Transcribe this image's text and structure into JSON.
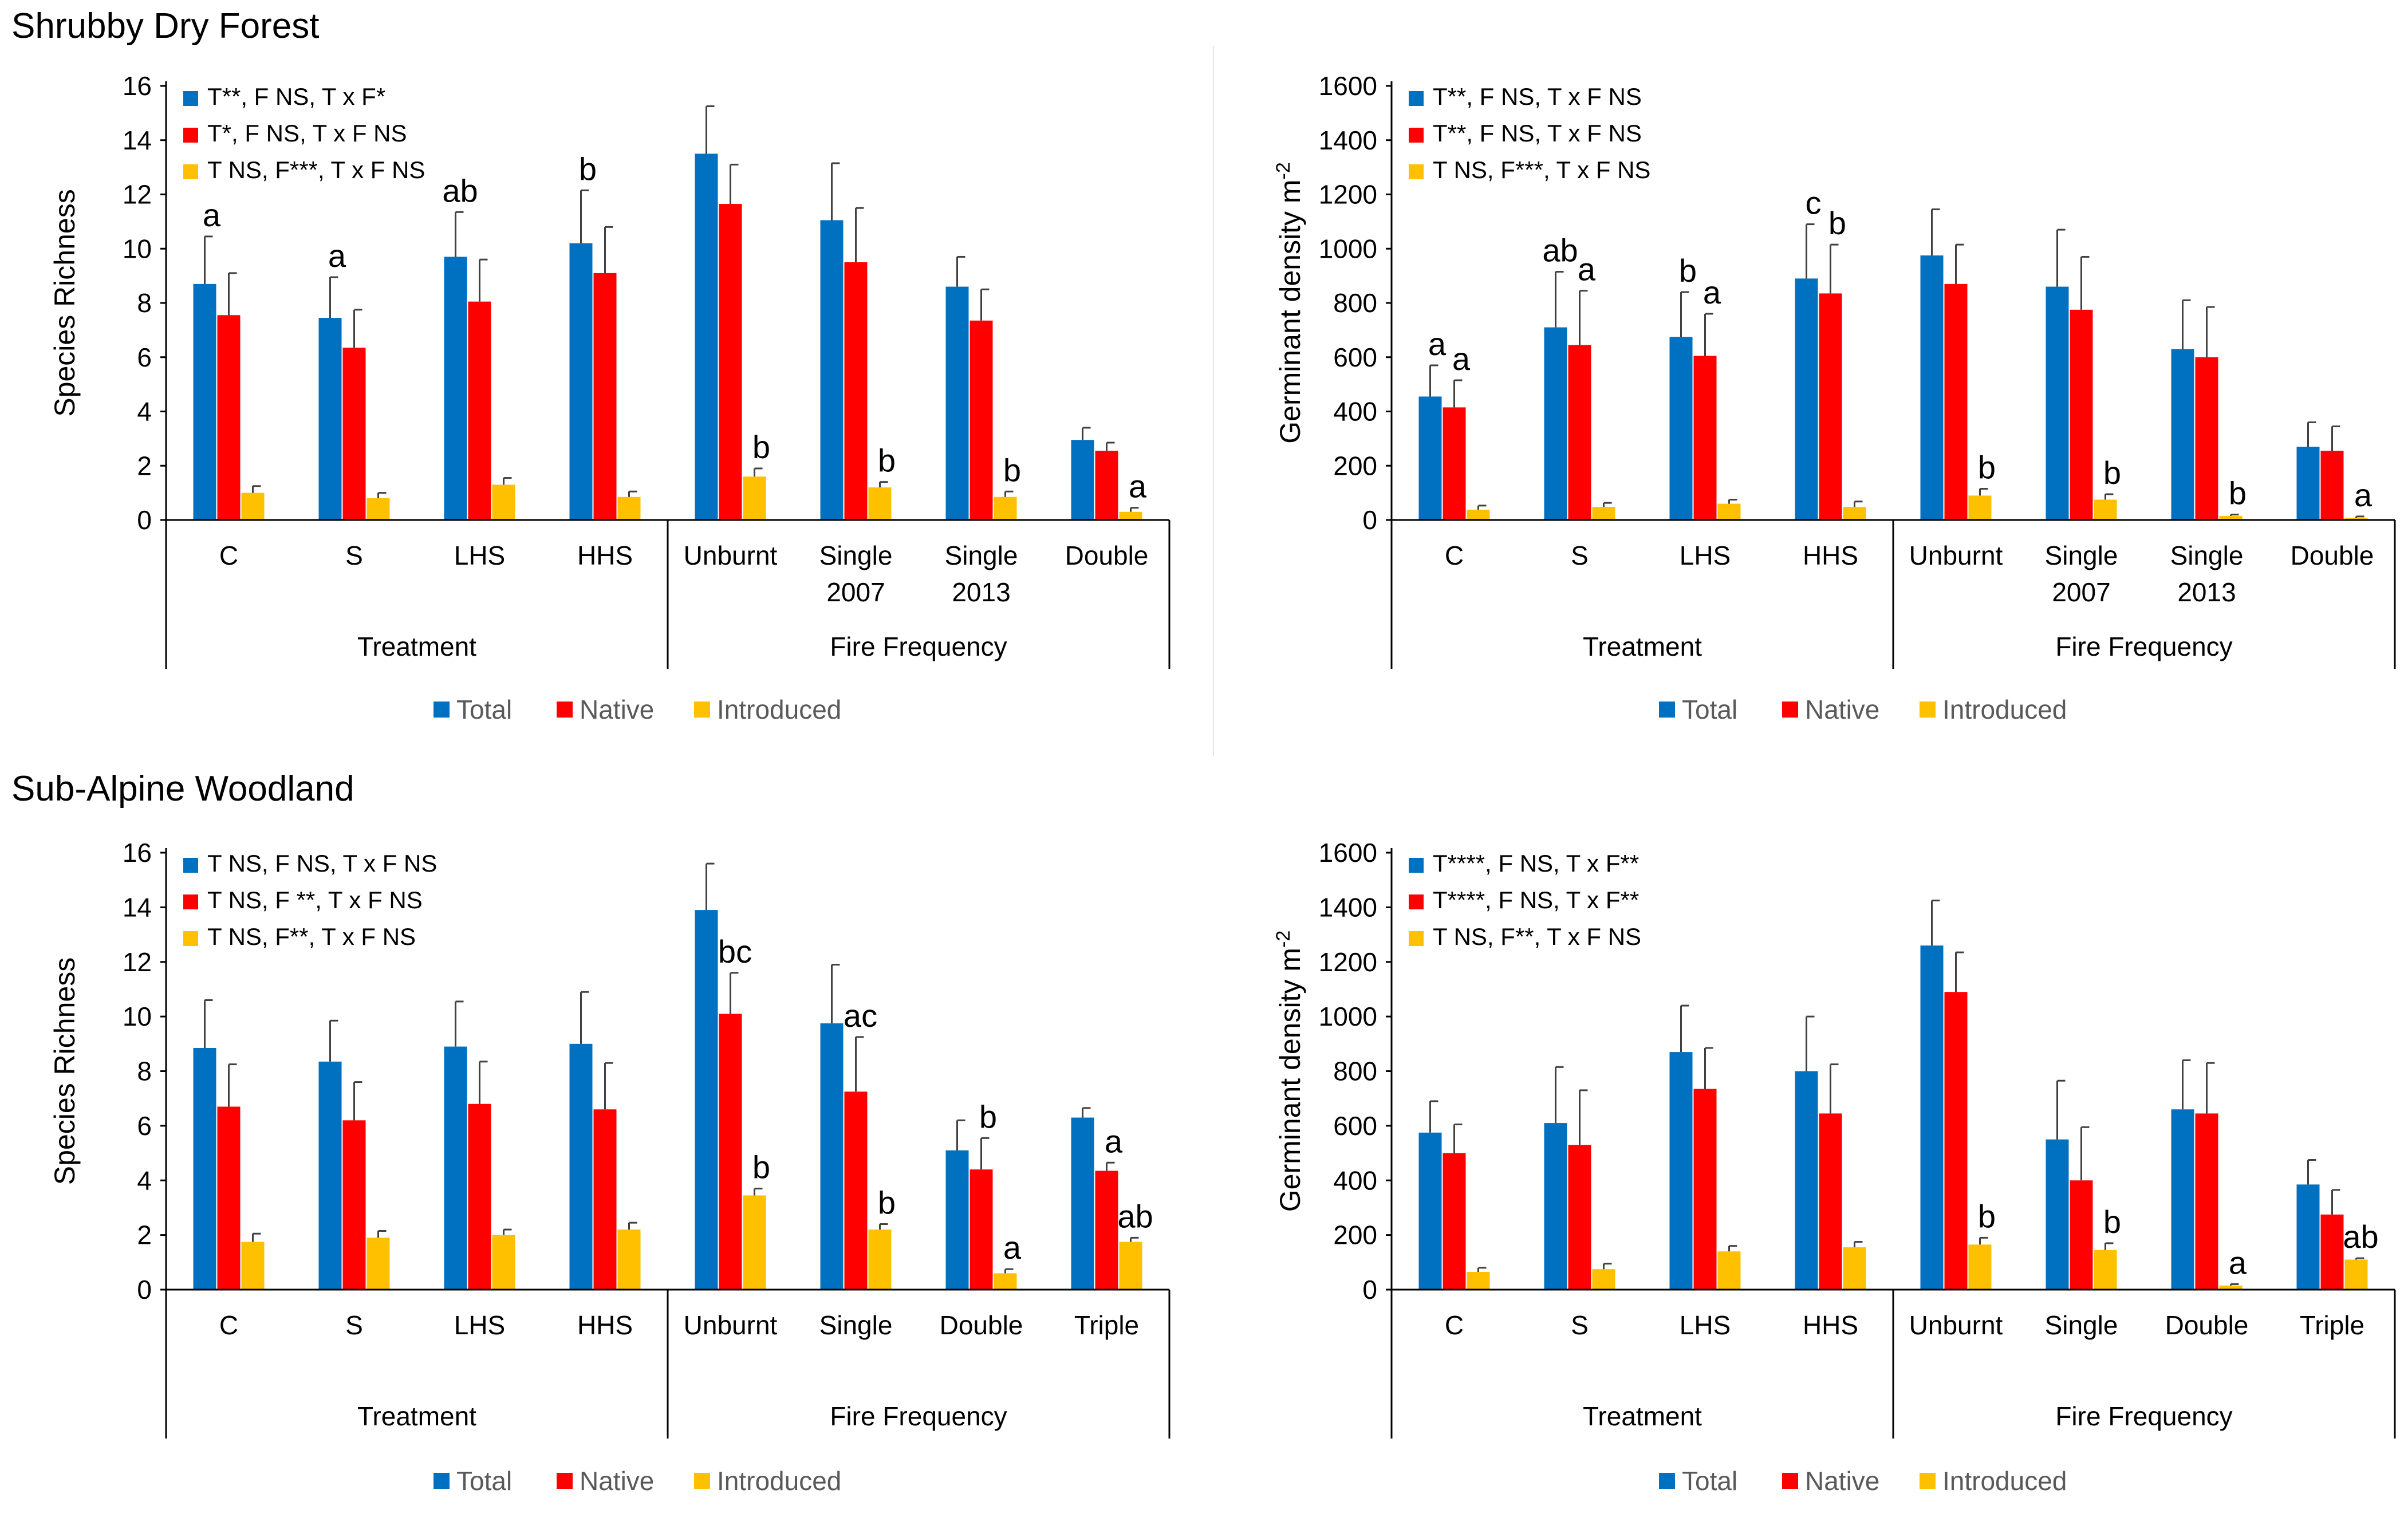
{
  "sections": {
    "top": "Shrubby Dry Forest",
    "bottom": "Sub-Alpine Woodland"
  },
  "colors": {
    "total": "#0070C0",
    "native": "#FF0000",
    "introduced": "#FFC000",
    "axis": "#000000",
    "error": "#404040"
  },
  "legend_labels": [
    "Total",
    "Native",
    "Introduced"
  ],
  "chart_data": [
    {
      "id": "sdf-richness",
      "type": "bar",
      "ylabel": "Species Richness",
      "ylim": [
        0,
        16
      ],
      "yticks": [
        0,
        2,
        4,
        6,
        8,
        10,
        12,
        14,
        16
      ],
      "categories": [
        "C",
        "S",
        "LHS",
        "HHS",
        "Unburnt",
        "Single\n2007",
        "Single\n2013",
        "Double"
      ],
      "groups": [
        {
          "label": "Treatment",
          "count": 4
        },
        {
          "label": "Fire Frequency",
          "count": 4
        }
      ],
      "stats": [
        "T**, F NS, T x F*",
        "T*, F NS, T x F NS",
        "T NS, F***, T x F NS"
      ],
      "series": [
        {
          "name": "Total",
          "values": [
            8.7,
            7.45,
            9.7,
            10.2,
            13.5,
            11.05,
            8.6,
            2.95
          ],
          "errors": [
            1.75,
            1.5,
            1.65,
            1.95,
            1.75,
            2.1,
            1.1,
            0.45
          ]
        },
        {
          "name": "Native",
          "values": [
            7.55,
            6.35,
            8.05,
            9.1,
            11.65,
            9.5,
            7.35,
            2.55
          ],
          "errors": [
            1.55,
            1.4,
            1.55,
            1.7,
            1.45,
            2.0,
            1.15,
            0.3
          ]
        },
        {
          "name": "Introduced",
          "values": [
            1.0,
            0.8,
            1.3,
            0.85,
            1.6,
            1.2,
            0.85,
            0.3
          ],
          "errors": [
            0.25,
            0.2,
            0.25,
            0.2,
            0.3,
            0.2,
            0.2,
            0.15
          ]
        }
      ],
      "annotations": [
        {
          "series": "Total",
          "index": 0,
          "text": "a"
        },
        {
          "series": "Total",
          "index": 1,
          "text": "a"
        },
        {
          "series": "Total",
          "index": 2,
          "text": "ab"
        },
        {
          "series": "Total",
          "index": 3,
          "text": "b"
        },
        {
          "series": "Introduced",
          "index": 4,
          "text": "b"
        },
        {
          "series": "Introduced",
          "index": 5,
          "text": "b"
        },
        {
          "series": "Introduced",
          "index": 6,
          "text": "b"
        },
        {
          "series": "Introduced",
          "index": 7,
          "text": "a"
        }
      ]
    },
    {
      "id": "sdf-density",
      "type": "bar",
      "ylabel": "Germinant density m",
      "ylabel_sup": "-2",
      "ylim": [
        0,
        1600
      ],
      "yticks": [
        0,
        200,
        400,
        600,
        800,
        1000,
        1200,
        1400,
        1600
      ],
      "categories": [
        "C",
        "S",
        "LHS",
        "HHS",
        "Unburnt",
        "Single\n2007",
        "Single\n2013",
        "Double"
      ],
      "groups": [
        {
          "label": "Treatment",
          "count": 4
        },
        {
          "label": "Fire Frequency",
          "count": 4
        }
      ],
      "stats": [
        "T**, F NS, T x F NS",
        "T**, F NS, T x F NS",
        "T NS, F***, T x F NS"
      ],
      "series": [
        {
          "name": "Total",
          "values": [
            455,
            710,
            675,
            890,
            975,
            860,
            630,
            270
          ],
          "errors": [
            115,
            205,
            165,
            200,
            170,
            210,
            180,
            90
          ]
        },
        {
          "name": "Native",
          "values": [
            415,
            645,
            605,
            835,
            870,
            775,
            600,
            255
          ],
          "errors": [
            100,
            200,
            155,
            180,
            145,
            195,
            185,
            90
          ]
        },
        {
          "name": "Introduced",
          "values": [
            38,
            48,
            60,
            48,
            90,
            75,
            15,
            8
          ],
          "errors": [
            15,
            15,
            15,
            20,
            25,
            20,
            5,
            5
          ]
        }
      ],
      "annotations": [
        {
          "series": "Total",
          "index": 0,
          "text": "a"
        },
        {
          "series": "Native",
          "index": 0,
          "text": "a"
        },
        {
          "series": "Total",
          "index": 1,
          "text": "ab"
        },
        {
          "series": "Native",
          "index": 1,
          "text": "a"
        },
        {
          "series": "Total",
          "index": 2,
          "text": "b"
        },
        {
          "series": "Native",
          "index": 2,
          "text": "a"
        },
        {
          "series": "Total",
          "index": 3,
          "text": "c"
        },
        {
          "series": "Native",
          "index": 3,
          "text": "b"
        },
        {
          "series": "Introduced",
          "index": 4,
          "text": "b"
        },
        {
          "series": "Introduced",
          "index": 5,
          "text": "b"
        },
        {
          "series": "Introduced",
          "index": 6,
          "text": "b"
        },
        {
          "series": "Introduced",
          "index": 7,
          "text": "a"
        }
      ]
    },
    {
      "id": "saw-richness",
      "type": "bar",
      "ylabel": "Species Richness",
      "ylim": [
        0,
        16
      ],
      "yticks": [
        0,
        2,
        4,
        6,
        8,
        10,
        12,
        14,
        16
      ],
      "categories": [
        "C",
        "S",
        "LHS",
        "HHS",
        "Unburnt",
        "Single",
        "Double",
        "Triple"
      ],
      "groups": [
        {
          "label": "Treatment",
          "count": 4
        },
        {
          "label": "Fire Frequency",
          "count": 4
        }
      ],
      "stats": [
        "T NS, F NS, T x F NS",
        "T NS, F **, T x F NS",
        "T NS, F**, T x F NS"
      ],
      "series": [
        {
          "name": "Total",
          "values": [
            8.85,
            8.35,
            8.9,
            9.0,
            13.9,
            9.75,
            5.1,
            6.3
          ],
          "errors": [
            1.75,
            1.5,
            1.65,
            1.9,
            1.7,
            2.15,
            1.1,
            0.35
          ]
        },
        {
          "name": "Native",
          "values": [
            6.7,
            6.2,
            6.8,
            6.6,
            10.1,
            7.25,
            4.4,
            4.35
          ],
          "errors": [
            1.55,
            1.4,
            1.55,
            1.7,
            1.5,
            2.0,
            1.15,
            0.3
          ]
        },
        {
          "name": "Introduced",
          "values": [
            1.75,
            1.9,
            2.0,
            2.2,
            3.45,
            2.2,
            0.6,
            1.75
          ],
          "errors": [
            0.3,
            0.25,
            0.2,
            0.25,
            0.25,
            0.2,
            0.15,
            0.15
          ]
        }
      ],
      "annotations": [
        {
          "series": "Native",
          "index": 4,
          "text": "bc"
        },
        {
          "series": "Introduced",
          "index": 4,
          "text": "b"
        },
        {
          "series": "Native",
          "index": 5,
          "text": "ac"
        },
        {
          "series": "Introduced",
          "index": 5,
          "text": "b"
        },
        {
          "series": "Native",
          "index": 6,
          "text": "b"
        },
        {
          "series": "Introduced",
          "index": 6,
          "text": "a"
        },
        {
          "series": "Native",
          "index": 7,
          "text": "a"
        },
        {
          "series": "Introduced",
          "index": 7,
          "text": "ab"
        }
      ]
    },
    {
      "id": "saw-density",
      "type": "bar",
      "ylabel": "Germinant density m",
      "ylabel_sup": "-2",
      "ylim": [
        0,
        1600
      ],
      "yticks": [
        0,
        200,
        400,
        600,
        800,
        1000,
        1200,
        1400,
        1600
      ],
      "categories": [
        "C",
        "S",
        "LHS",
        "HHS",
        "Unburnt",
        "Single",
        "Double",
        "Triple"
      ],
      "groups": [
        {
          "label": "Treatment",
          "count": 4
        },
        {
          "label": "Fire Frequency",
          "count": 4
        }
      ],
      "stats": [
        "T****, F NS, T x F**",
        "T****, F NS, T x F**",
        "T NS, F**, T x F NS"
      ],
      "series": [
        {
          "name": "Total",
          "values": [
            575,
            610,
            870,
            800,
            1260,
            550,
            660,
            385
          ],
          "errors": [
            115,
            205,
            170,
            200,
            165,
            215,
            180,
            90
          ]
        },
        {
          "name": "Native",
          "values": [
            500,
            530,
            735,
            645,
            1090,
            400,
            645,
            275
          ],
          "errors": [
            105,
            200,
            150,
            180,
            145,
            195,
            185,
            90
          ]
        },
        {
          "name": "Introduced",
          "values": [
            65,
            75,
            140,
            155,
            165,
            145,
            15,
            110
          ],
          "errors": [
            15,
            20,
            20,
            20,
            25,
            25,
            5,
            5
          ]
        }
      ],
      "annotations": [
        {
          "series": "Introduced",
          "index": 4,
          "text": "b"
        },
        {
          "series": "Introduced",
          "index": 5,
          "text": "b"
        },
        {
          "series": "Introduced",
          "index": 6,
          "text": "a"
        },
        {
          "series": "Introduced",
          "index": 7,
          "text": "ab"
        }
      ]
    }
  ]
}
